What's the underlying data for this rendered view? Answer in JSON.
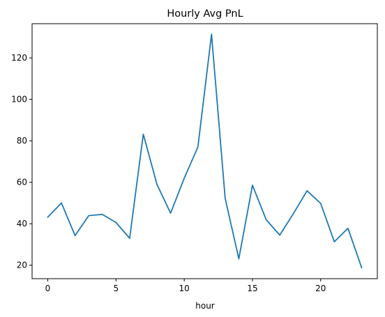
{
  "chart_data": {
    "type": "line",
    "title": "Hourly Avg PnL",
    "xlabel": "hour",
    "ylabel": "",
    "xlim": [
      -1.15,
      24.15
    ],
    "ylim": [
      13.5,
      136.5
    ],
    "xticks": [
      0,
      5,
      10,
      15,
      20
    ],
    "yticks": [
      20,
      40,
      60,
      80,
      100,
      120
    ],
    "grid": false,
    "series": [
      {
        "color": "#1f77b4",
        "x": [
          0,
          1,
          2,
          3,
          4,
          5,
          6,
          7,
          8,
          9,
          10,
          11,
          12,
          13,
          14,
          15,
          16,
          17,
          18,
          19,
          20,
          21,
          22,
          23
        ],
        "y": [
          43.2,
          50.0,
          34.3,
          43.9,
          44.5,
          40.6,
          33.0,
          83.2,
          59.0,
          45.1,
          62.0,
          77.0,
          131.4,
          52.2,
          23.1,
          58.6,
          42.0,
          34.5,
          44.9,
          55.9,
          49.8,
          31.3,
          37.8,
          18.8
        ]
      }
    ]
  }
}
